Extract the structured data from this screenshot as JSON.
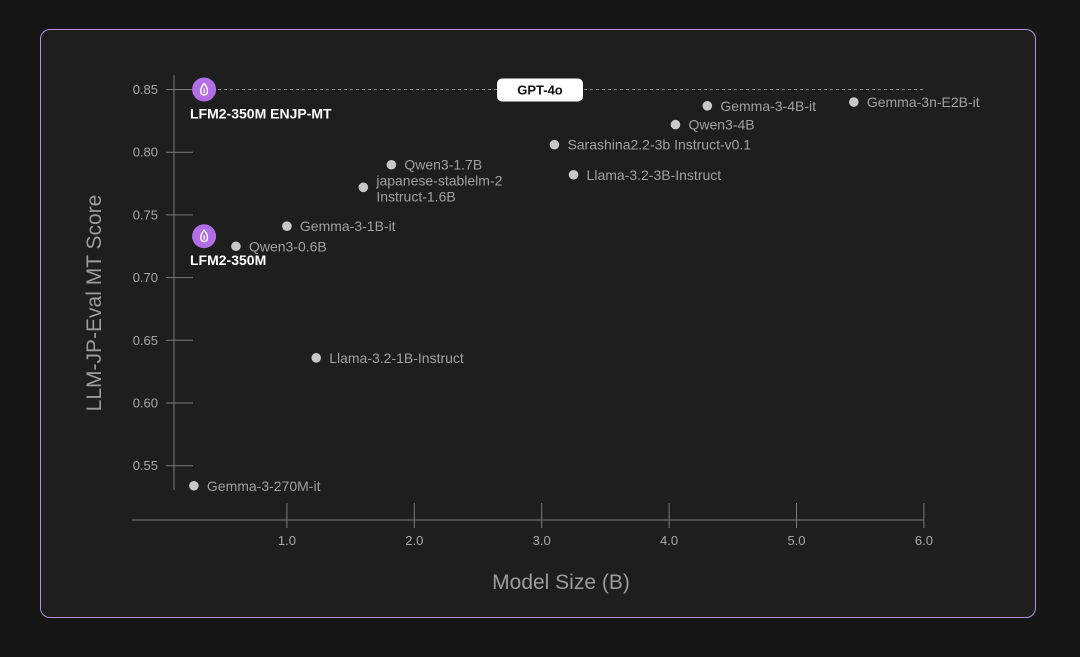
{
  "chart_data": {
    "type": "scatter",
    "xlabel": "Model Size (B)",
    "ylabel": "LLM-JP-Eval MT Score",
    "xlim": [
      0,
      6.0
    ],
    "ylim": [
      0.53,
      0.865
    ],
    "xticks": [
      1.0,
      2.0,
      3.0,
      4.0,
      5.0,
      6.0
    ],
    "xtick_labels": [
      "1.0",
      "2.0",
      "3.0",
      "4.0",
      "5.0",
      "6.0"
    ],
    "yticks": [
      0.55,
      0.6,
      0.65,
      0.7,
      0.75,
      0.8,
      0.85
    ],
    "ytick_labels": [
      "0.55",
      "0.60",
      "0.65",
      "0.70",
      "0.75",
      "0.80",
      "0.85"
    ],
    "grid": false,
    "reference_line": {
      "label": "GPT-4o",
      "y": 0.85
    },
    "highlight_color": "#b16ee6",
    "point_color": "#c8c8c8",
    "points": [
      {
        "label": "LFM2-350M ENJP-MT",
        "x": 0.35,
        "y": 0.85,
        "highlight": true
      },
      {
        "label": "LFM2-350M",
        "x": 0.35,
        "y": 0.733,
        "highlight": true
      },
      {
        "label": "Gemma-3-270M-it",
        "x": 0.27,
        "y": 0.534
      },
      {
        "label": "Qwen3-0.6B",
        "x": 0.6,
        "y": 0.725
      },
      {
        "label": "Gemma-3-1B-it",
        "x": 1.0,
        "y": 0.741
      },
      {
        "label": "Llama-3.2-1B-Instruct",
        "x": 1.23,
        "y": 0.636
      },
      {
        "label": "japanese-stablelm-2 Instruct-1.6B",
        "label_lines": [
          "japanese-stablelm-2",
          "Instruct-1.6B"
        ],
        "x": 1.6,
        "y": 0.772
      },
      {
        "label": "Qwen3-1.7B",
        "x": 1.82,
        "y": 0.79
      },
      {
        "label": "Sarashina2.2-3b Instruct-v0.1",
        "x": 3.1,
        "y": 0.806
      },
      {
        "label": "Llama-3.2-3B-Instruct",
        "x": 3.25,
        "y": 0.782
      },
      {
        "label": "Qwen3-4B",
        "x": 4.05,
        "y": 0.822
      },
      {
        "label": "Gemma-3-4B-it",
        "x": 4.3,
        "y": 0.837
      },
      {
        "label": "Gemma-3n-E2B-it",
        "x": 5.45,
        "y": 0.84
      }
    ]
  }
}
